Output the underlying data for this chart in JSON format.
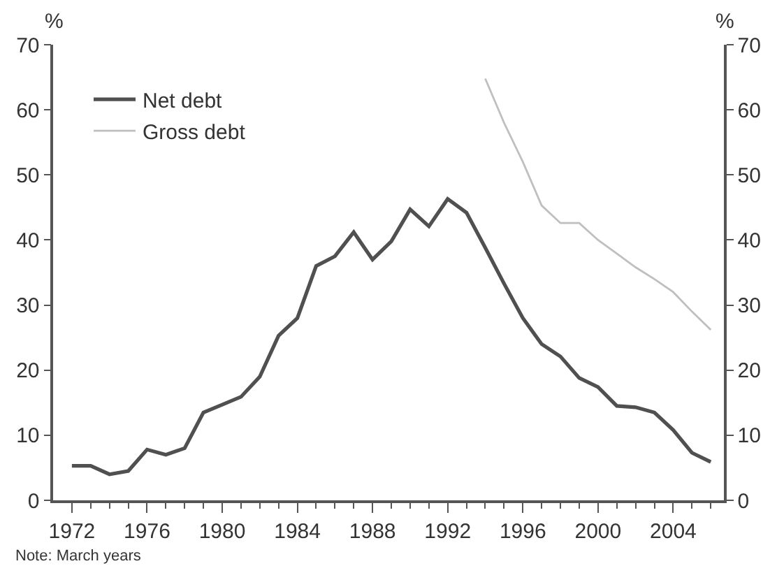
{
  "chart_data": {
    "type": "line",
    "ylabel": "%",
    "y2label": "%",
    "x": [
      1972,
      1973,
      1974,
      1975,
      1976,
      1977,
      1978,
      1979,
      1980,
      1981,
      1982,
      1983,
      1984,
      1985,
      1986,
      1987,
      1988,
      1989,
      1990,
      1991,
      1992,
      1993,
      1994,
      1995,
      1996,
      1997,
      1998,
      1999,
      2000,
      2001,
      2002,
      2003,
      2004,
      2005,
      2006
    ],
    "series": [
      {
        "name": "Net debt",
        "color": "#505050",
        "values": [
          5.3,
          5.3,
          4.0,
          4.5,
          7.8,
          7.0,
          8.0,
          13.5,
          14.7,
          15.9,
          19.0,
          25.3,
          28.0,
          36.0,
          37.5,
          41.2,
          37.0,
          39.8,
          44.7,
          42.1,
          46.3,
          44.2,
          38.8,
          33.3,
          28.0,
          24.0,
          22.1,
          18.8,
          17.4,
          14.5,
          14.3,
          13.5,
          10.8,
          7.3,
          5.9
        ]
      },
      {
        "name": "Gross debt",
        "color": "#bfbfbf",
        "values": [
          null,
          null,
          null,
          null,
          null,
          null,
          null,
          null,
          null,
          null,
          null,
          null,
          null,
          null,
          null,
          null,
          null,
          null,
          null,
          null,
          null,
          null,
          64.8,
          58.0,
          52.0,
          45.3,
          42.6,
          42.6,
          40.0,
          37.9,
          35.8,
          34.0,
          32.0,
          29.0,
          26.2
        ]
      }
    ],
    "xlim": [
      1971,
      2006.7
    ],
    "xticks": [
      1972,
      {
        "value": 1973,
        "label": null
      },
      {
        "value": 1974,
        "label": null
      },
      {
        "value": 1975,
        "label": null
      },
      1976,
      {
        "value": 1977,
        "label": null
      },
      {
        "value": 1978,
        "label": null
      },
      {
        "value": 1979,
        "label": null
      },
      1980,
      {
        "value": 1981,
        "label": null
      },
      {
        "value": 1982,
        "label": null
      },
      {
        "value": 1983,
        "label": null
      },
      1984,
      {
        "value": 1985,
        "label": null
      },
      {
        "value": 1986,
        "label": null
      },
      {
        "value": 1987,
        "label": null
      },
      1988,
      {
        "value": 1989,
        "label": null
      },
      {
        "value": 1990,
        "label": null
      },
      {
        "value": 1991,
        "label": null
      },
      1992,
      {
        "value": 1993,
        "label": null
      },
      {
        "value": 1994,
        "label": null
      },
      {
        "value": 1995,
        "label": null
      },
      1996,
      {
        "value": 1997,
        "label": null
      },
      {
        "value": 1998,
        "label": null
      },
      {
        "value": 1999,
        "label": null
      },
      2000,
      {
        "value": 2001,
        "label": null
      },
      {
        "value": 2002,
        "label": null
      },
      {
        "value": 2003,
        "label": null
      },
      2004,
      {
        "value": 2005,
        "label": null
      },
      {
        "value": 2006,
        "label": null
      }
    ],
    "ylim": [
      0,
      70
    ],
    "yticks": [
      0,
      10,
      20,
      30,
      40,
      50,
      60,
      70
    ],
    "y2lim": [
      0,
      70
    ],
    "y2ticks": [
      0,
      10,
      20,
      30,
      40,
      50,
      60,
      70
    ],
    "legend": "top left",
    "marker": "none",
    "line_style": "solid",
    "annotations": [
      "Note: March years"
    ]
  }
}
